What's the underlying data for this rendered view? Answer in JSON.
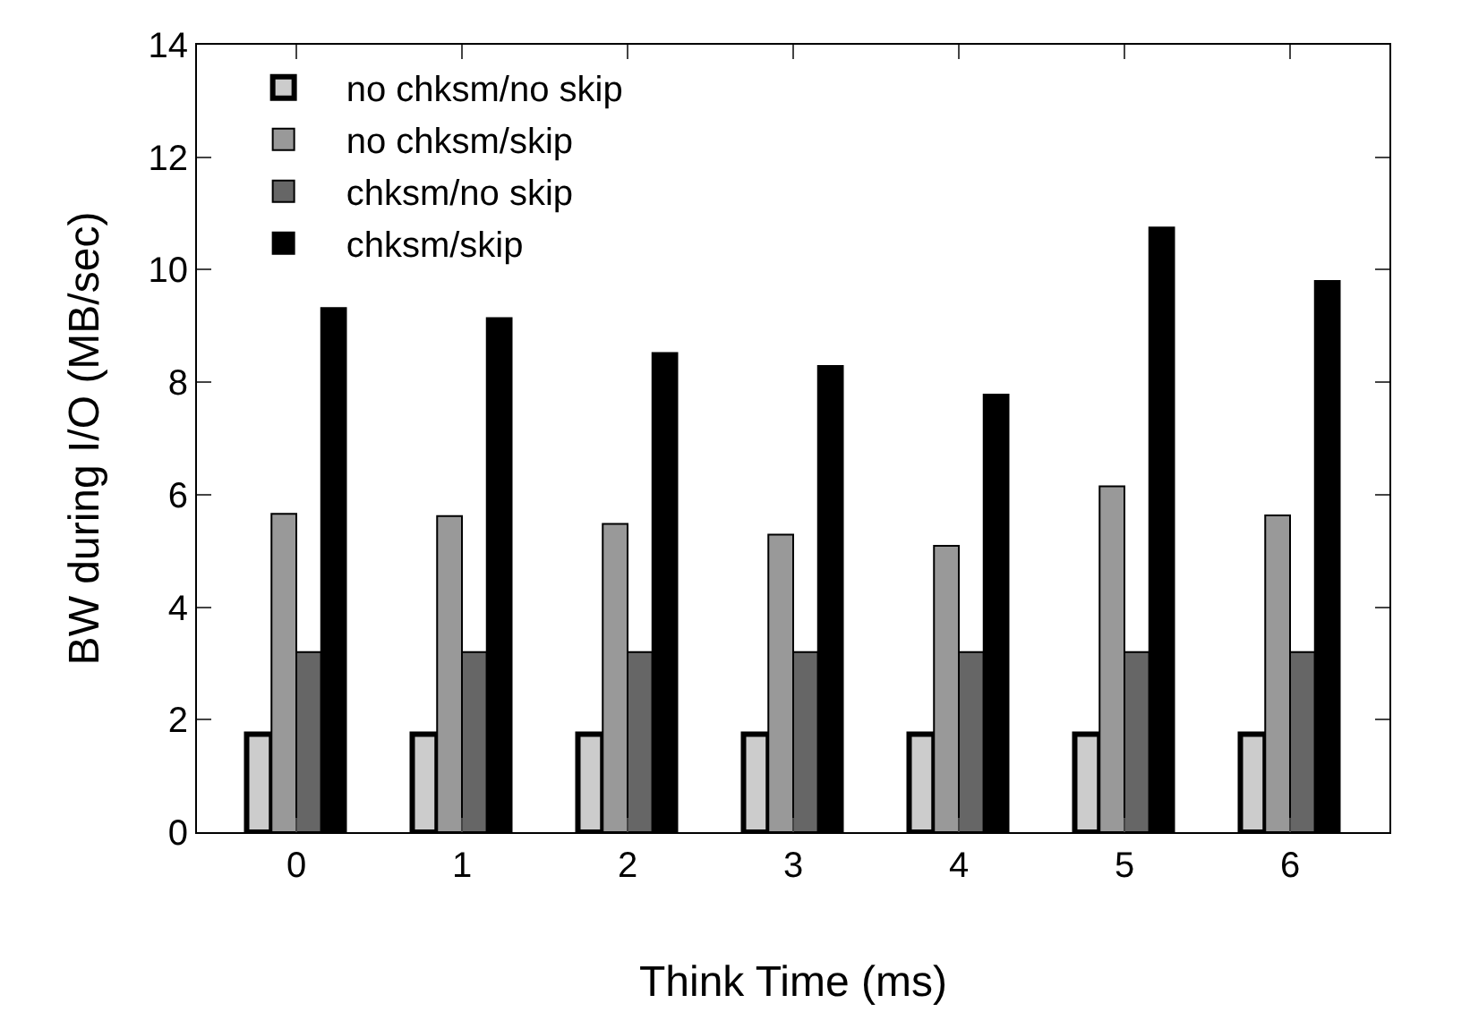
{
  "chart_data": {
    "type": "bar",
    "xlabel": "Think Time (ms)",
    "ylabel": "BW during I/O (MB/sec)",
    "categories": [
      "0",
      "1",
      "2",
      "3",
      "4",
      "5",
      "6"
    ],
    "series": [
      {
        "name": "no chksm/no skip",
        "color": "#cccccc",
        "values": [
          1.74,
          1.74,
          1.74,
          1.74,
          1.74,
          1.74,
          1.74
        ]
      },
      {
        "name": "no chksm/skip",
        "color": "#999999",
        "values": [
          5.66,
          5.62,
          5.48,
          5.29,
          5.09,
          6.15,
          5.63
        ]
      },
      {
        "name": "chksm/no skip",
        "color": "#666666",
        "values": [
          3.2,
          3.2,
          3.2,
          3.2,
          3.2,
          3.2,
          3.2
        ]
      },
      {
        "name": "chksm/skip",
        "color": "#000000",
        "values": [
          9.32,
          9.14,
          8.52,
          8.29,
          7.78,
          10.75,
          9.8
        ]
      }
    ],
    "ylim": [
      0,
      14
    ],
    "yticks": [
      0,
      2,
      4,
      6,
      8,
      10,
      12,
      14
    ],
    "grid": false,
    "legend": "top left"
  }
}
